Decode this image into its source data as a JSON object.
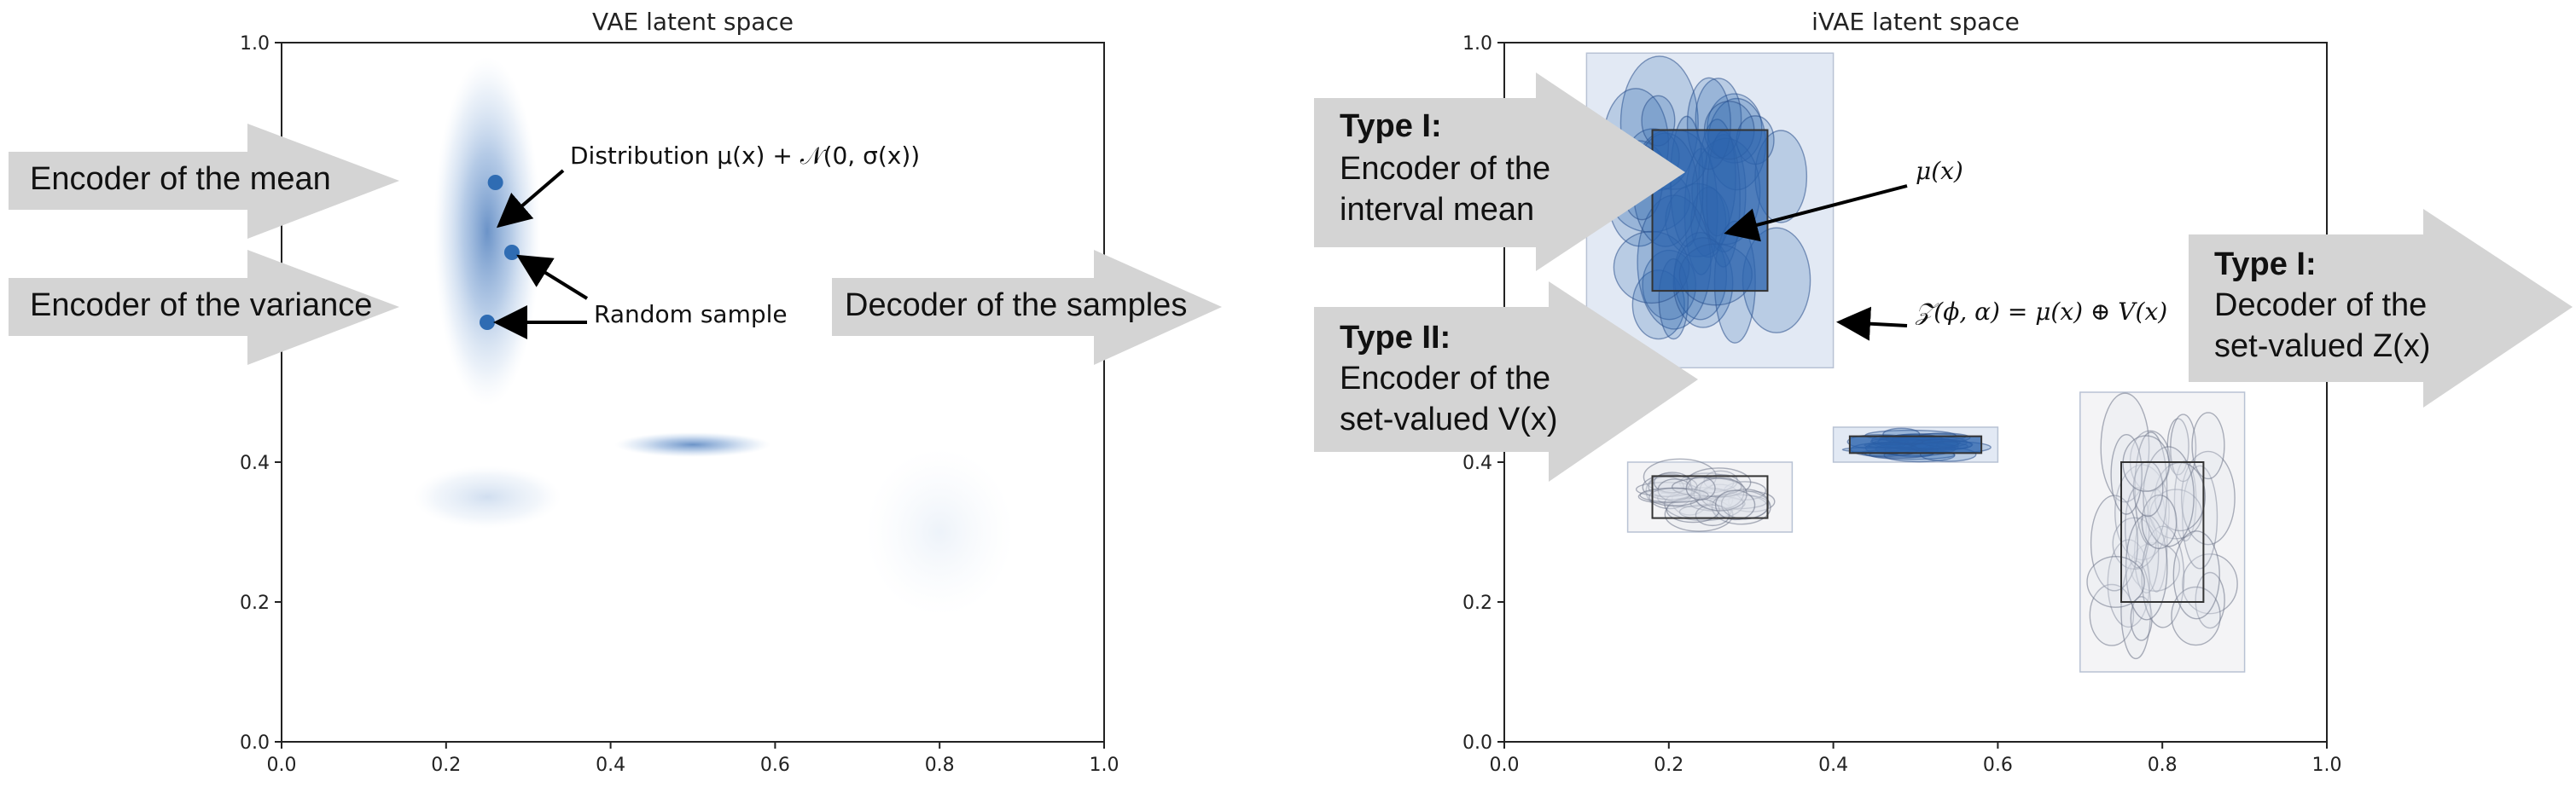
{
  "left_panel": {
    "title": "VAE latent space",
    "x_ticks": [
      "0.0",
      "0.2",
      "0.4",
      "0.6",
      "0.8",
      "1.0"
    ],
    "y_ticks": [
      "0.0",
      "0.2",
      "0.4",
      "1.0"
    ],
    "annotations": {
      "distribution": "Distribution μ(x) + 𝒩(0, σ(x))",
      "random_sample": "Random sample"
    },
    "callouts": {
      "encoder_mean": "Encoder of the mean",
      "encoder_variance": "Encoder of the variance",
      "decoder_samples": "Decoder of the samples"
    },
    "gaussians": [
      {
        "cx": 0.25,
        "cy": 0.73,
        "sx": 0.065,
        "sy": 0.25
      },
      {
        "cx": 0.5,
        "cy": 0.425,
        "sx": 0.095,
        "sy": 0.018
      },
      {
        "cx": 0.25,
        "cy": 0.35,
        "sx": 0.09,
        "sy": 0.045
      },
      {
        "cx": 0.8,
        "cy": 0.3,
        "sx": 0.09,
        "sy": 0.12
      }
    ],
    "samples": [
      {
        "x": 0.26,
        "y": 0.8
      },
      {
        "x": 0.28,
        "y": 0.7
      },
      {
        "x": 0.25,
        "y": 0.6
      }
    ]
  },
  "right_panel": {
    "title": "iVAE latent space",
    "x_ticks": [
      "0.0",
      "0.2",
      "0.4",
      "0.6",
      "0.8",
      "1.0"
    ],
    "y_ticks": [
      "0.0",
      "0.2",
      "0.4",
      "1.0"
    ],
    "annotations": {
      "mu": "μ(x)",
      "set_valued": "𝒵(ϕ, α) =  μ(x) ⊕ V(x)"
    },
    "callouts": {
      "type1_label": "Type I:",
      "type1_line1": "Encoder of the",
      "type1_line2": "interval mean",
      "type2_label": "Type II:",
      "type2_line1": "Encoder of the",
      "type2_line2": "set-valued V(x)",
      "decoder_label": "Type I:",
      "decoder_line1": "Decoder of the",
      "decoder_line2": "set-valued Z(x)"
    },
    "interval_sets": [
      {
        "cx": 0.25,
        "cy": 0.76,
        "hw": 0.15,
        "hh": 0.225,
        "iw": 0.07,
        "ih": 0.115,
        "color": "blue"
      },
      {
        "cx": 0.5,
        "cy": 0.425,
        "hw": 0.1,
        "hh": 0.025,
        "iw": 0.08,
        "ih": 0.012,
        "color": "blue"
      },
      {
        "cx": 0.25,
        "cy": 0.35,
        "hw": 0.1,
        "hh": 0.05,
        "iw": 0.07,
        "ih": 0.03,
        "color": "gray"
      },
      {
        "cx": 0.8,
        "cy": 0.3,
        "hw": 0.1,
        "hh": 0.2,
        "iw": 0.05,
        "ih": 0.1,
        "color": "gray"
      }
    ],
    "colors": {
      "blue": "#2b63ad",
      "gray": "#8892a6"
    }
  }
}
